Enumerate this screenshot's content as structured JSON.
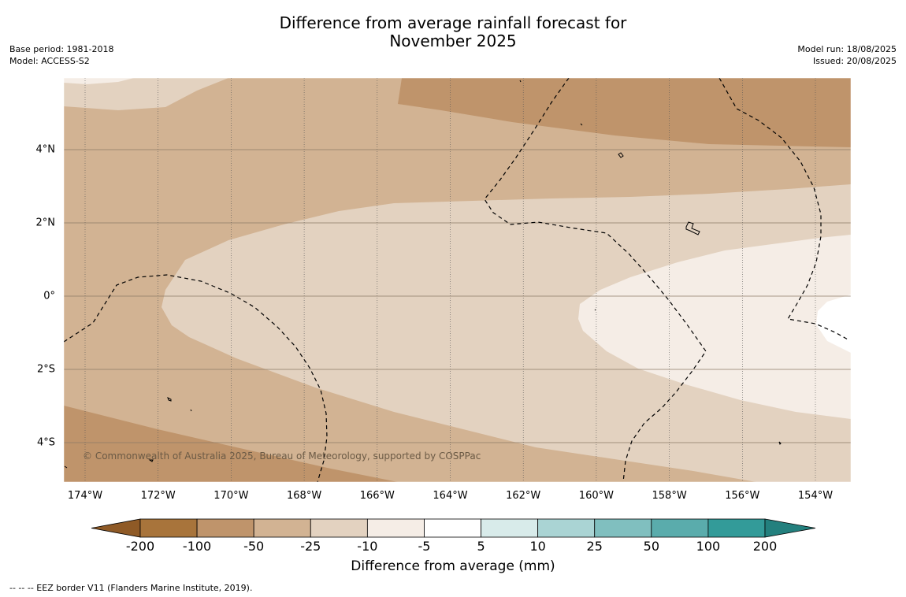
{
  "title_line1": "Difference from average rainfall forecast for",
  "title_line2": "November 2025",
  "base_period": "Base period: 1981-2018",
  "model": "Model: ACCESS-S2",
  "model_run": "Model run: 18/08/2025",
  "issued": "Issued: 20/08/2025",
  "copyright": "© Commonwealth of Australia 2025, Bureau of Meteorology, supported by COSPPac",
  "footer_note": "--  --  -- EEZ border V11 (Flanders Marine Institute, 2019).",
  "colorbar_title": "Difference from average (mm)",
  "colorbar_ticks": [
    "-200",
    "-100",
    "-50",
    "-25",
    "-10",
    "-5",
    "5",
    "10",
    "25",
    "50",
    "100",
    "200"
  ],
  "colorbar_colors": [
    "#a8743b",
    "#bf946b",
    "#d2b393",
    "#e3d2c0",
    "#f5ede6",
    "#ffffff",
    "#d8ebea",
    "#aad4d4",
    "#80bfbf",
    "#5aacac",
    "#339b99"
  ],
  "colorbar_under_color": "#8f5a26",
  "colorbar_over_color": "#23807e",
  "lat_labels": [
    "4°N",
    "2°N",
    "0°",
    "2°S",
    "4°S"
  ],
  "lon_labels": [
    "174°W",
    "172°W",
    "170°W",
    "168°W",
    "166°W",
    "164°W",
    "162°W",
    "160°W",
    "158°W",
    "156°W",
    "154°W"
  ]
}
